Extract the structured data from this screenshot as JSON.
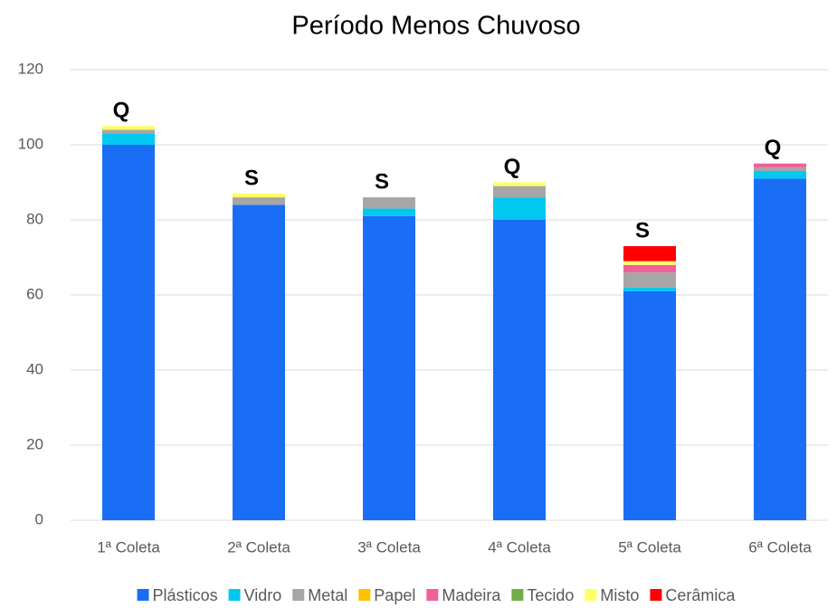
{
  "chart_data": {
    "type": "stacked_bar",
    "title": "Período Menos Chuvoso",
    "categories": [
      "1ª Coleta",
      "2ª Coleta",
      "3ª Coleta",
      "4ª Coleta",
      "5ª Coleta",
      "6ª Coleta"
    ],
    "series": [
      {
        "name": "Plásticos",
        "color": "#1a6ef5",
        "values": [
          100,
          84,
          81,
          80,
          61,
          91
        ]
      },
      {
        "name": "Vidro",
        "color": "#00c8f0",
        "values": [
          3,
          0,
          2,
          6,
          1,
          2
        ]
      },
      {
        "name": "Metal",
        "color": "#a6a6a6",
        "values": [
          1,
          2,
          3,
          3,
          4,
          1
        ]
      },
      {
        "name": "Papel",
        "color": "#ffc000",
        "values": [
          0,
          0,
          0,
          0,
          0,
          0
        ]
      },
      {
        "name": "Madeira",
        "color": "#f0609a",
        "values": [
          0,
          0,
          0,
          0,
          2,
          1
        ]
      },
      {
        "name": "Tecido",
        "color": "#70ad47",
        "values": [
          0,
          0,
          0,
          0,
          0,
          0
        ]
      },
      {
        "name": "Misto",
        "color": "#ffff66",
        "values": [
          1,
          1,
          0,
          1,
          1,
          0
        ]
      },
      {
        "name": "Cerâmica",
        "color": "#ff0000",
        "values": [
          0,
          0,
          0,
          0,
          4,
          0
        ]
      }
    ],
    "annotations": [
      "Q",
      "S",
      "S",
      "Q",
      "S",
      "Q"
    ],
    "ylim": [
      0,
      120
    ],
    "yticks": [
      0,
      20,
      40,
      60,
      80,
      100,
      120
    ],
    "grid": true,
    "legend": "bottom"
  }
}
